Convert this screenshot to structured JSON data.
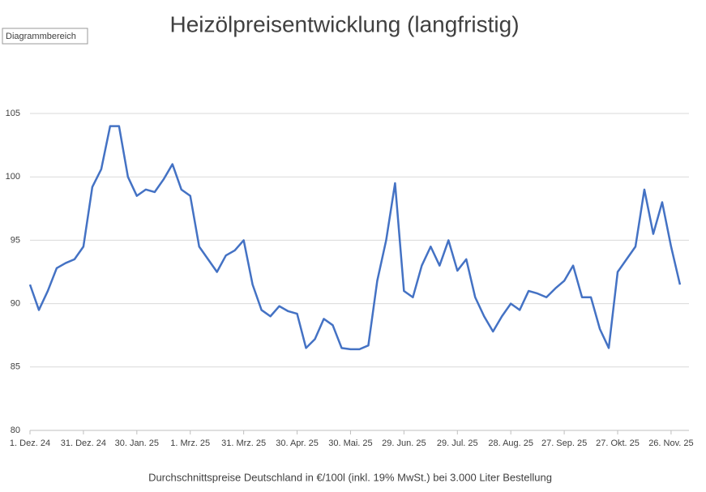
{
  "chart_data": {
    "type": "line",
    "title": "Heizölpreisentwicklung (langfristig)",
    "x_label": "Durchschnittspreise Deutschland in €/100l (inkl. 19% MwSt.) bei 3.000 Liter Bestellung",
    "tooltip": "Diagrammbereich",
    "categories": [
      "1. Dez. 24",
      null,
      null,
      null,
      null,
      null,
      "31. Dez. 24",
      null,
      null,
      null,
      null,
      null,
      "30. Jan. 25",
      null,
      null,
      null,
      null,
      null,
      "1. Mrz. 25",
      null,
      null,
      null,
      null,
      null,
      "31. Mrz. 25",
      null,
      null,
      null,
      null,
      null,
      "30. Apr. 25",
      null,
      null,
      null,
      null,
      null,
      "30. Mai. 25",
      null,
      null,
      null,
      null,
      null,
      "29. Jun. 25",
      null,
      null,
      null,
      null,
      null,
      "29. Jul. 25",
      null,
      null,
      null,
      null,
      null,
      "28. Aug. 25",
      null,
      null,
      null,
      null,
      null,
      "27. Sep. 25",
      null,
      null,
      null,
      null,
      null,
      "27. Okt. 25",
      null,
      null,
      null,
      null,
      null,
      "26. Nov. 25",
      null
    ],
    "series": [
      {
        "color": "#4472c4",
        "values": [
          91.5,
          89.5,
          91,
          92.8,
          93.2,
          93.5,
          94.5,
          99.2,
          100.6,
          104,
          104,
          100,
          98.5,
          99,
          98.8,
          99.8,
          101,
          99,
          98.5,
          94.5,
          93.5,
          92.5,
          93.8,
          94.2,
          95,
          91.5,
          89.5,
          89,
          89.8,
          89.4,
          89.2,
          86.5,
          87.2,
          88.8,
          88.3,
          86.5,
          86.4,
          86.4,
          86.7,
          91.8,
          95,
          99.5,
          91,
          90.5,
          93,
          94.5,
          93,
          95,
          92.6,
          93.5,
          90.5,
          89,
          87.8,
          89,
          90,
          89.5,
          91,
          90.8,
          90.5,
          91.2,
          91.8,
          93,
          90.5,
          90.5,
          88,
          86.5,
          92.5,
          93.5,
          94.5,
          99,
          95.5,
          98,
          94.5,
          91.5
        ]
      }
    ],
    "ylim": [
      80,
      105
    ],
    "yticks": [
      80,
      85,
      90,
      95,
      100,
      105
    ],
    "grid": true
  }
}
